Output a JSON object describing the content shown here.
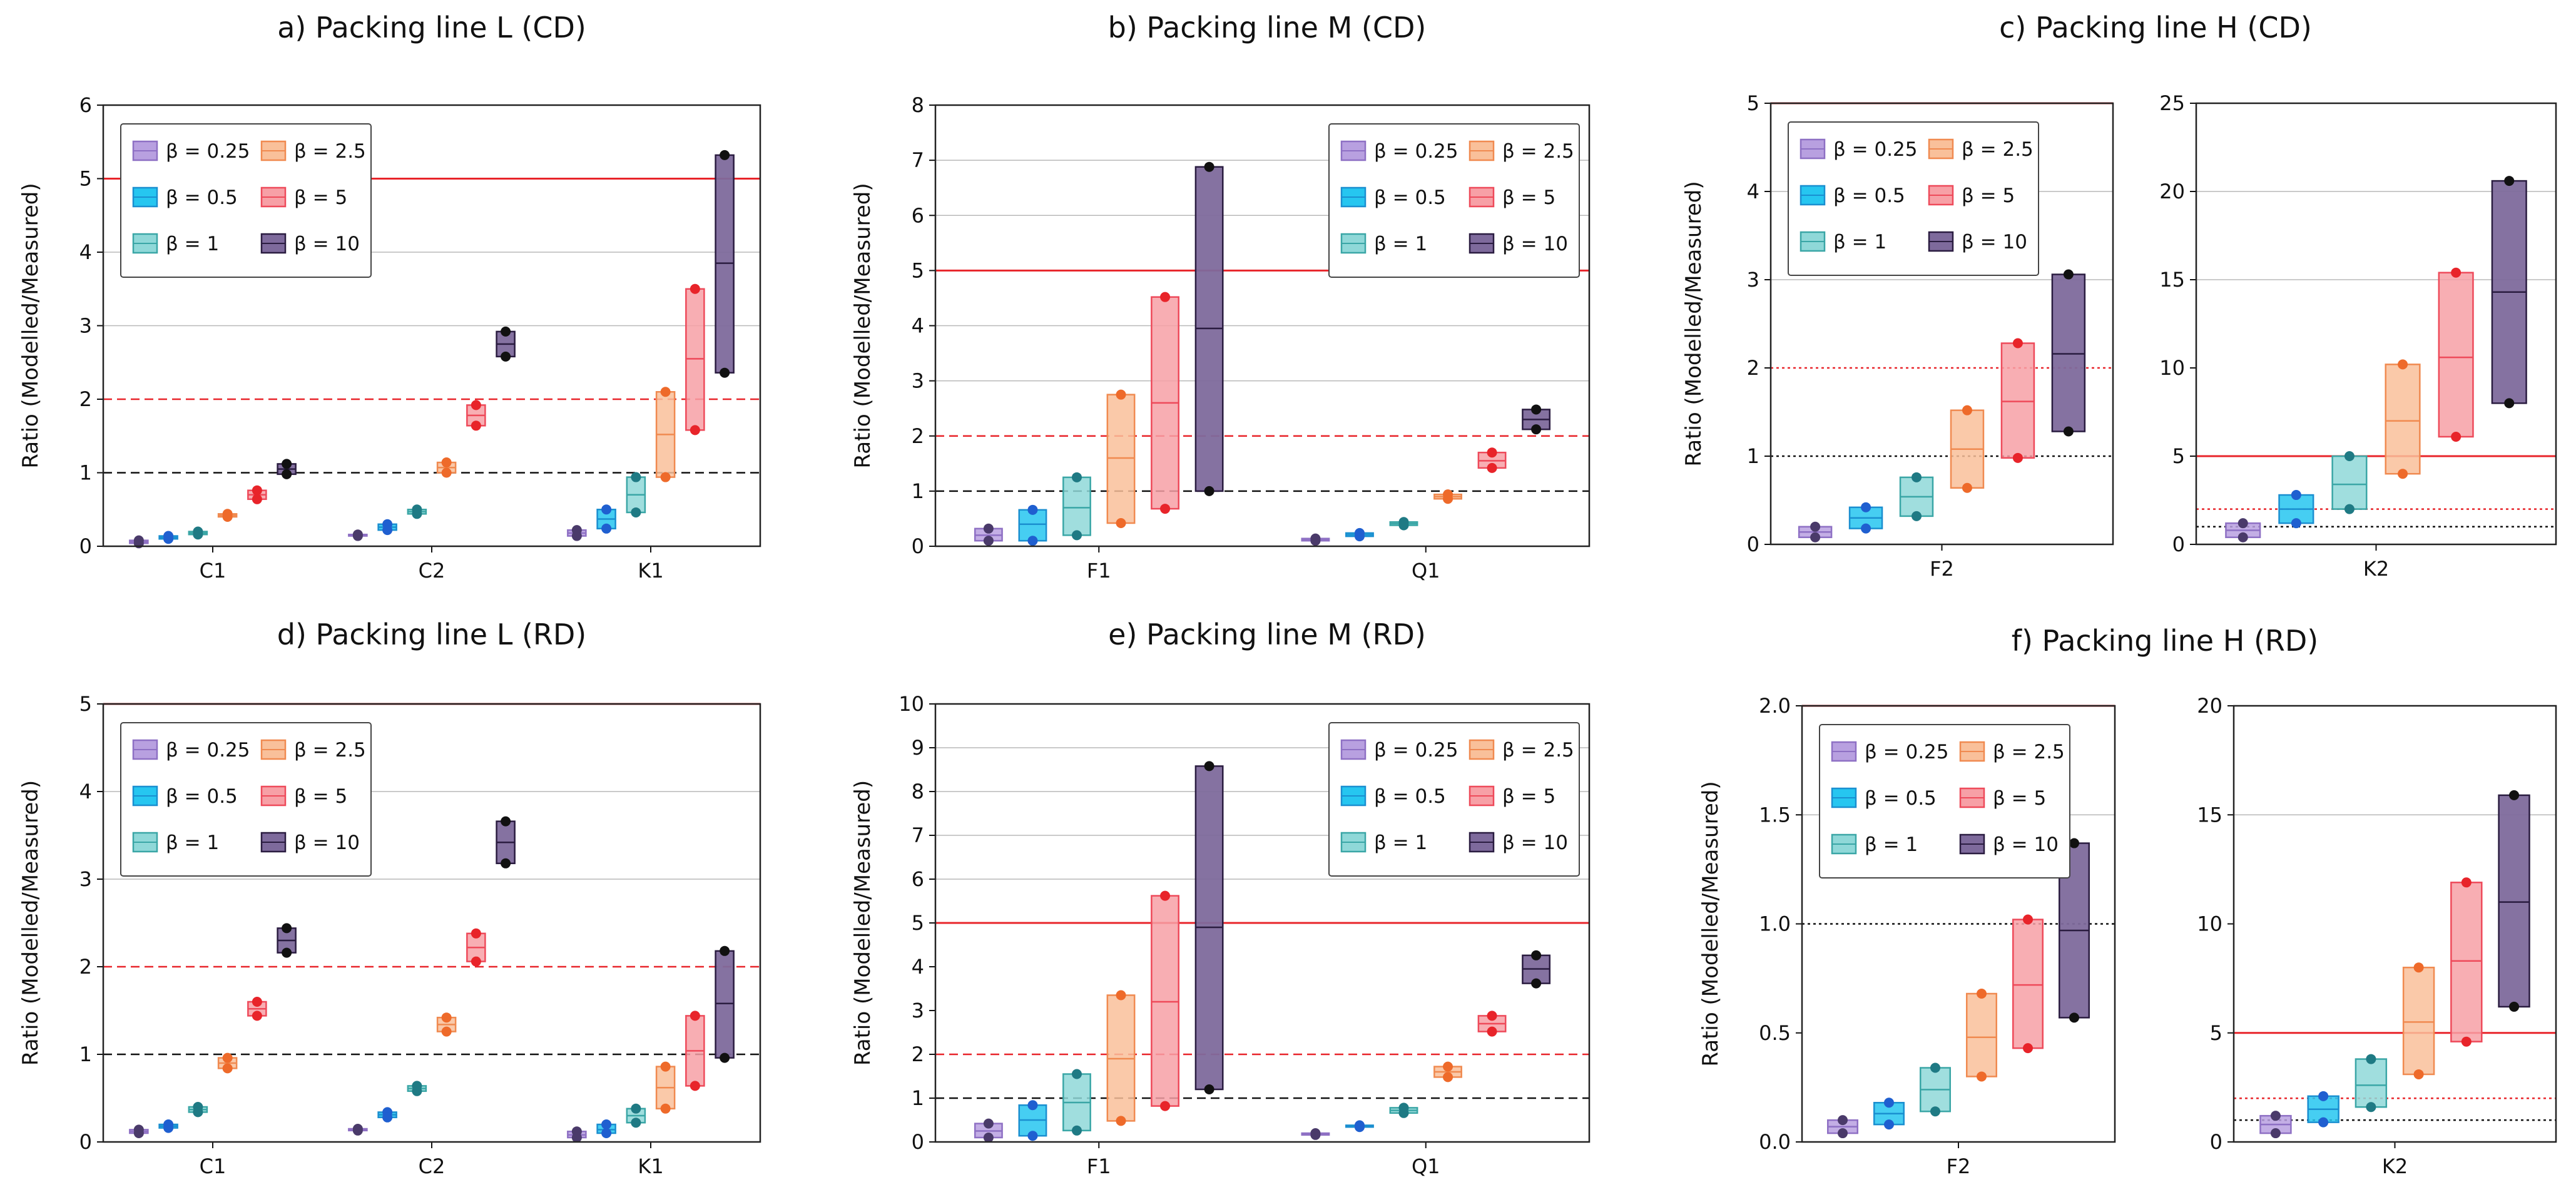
{
  "figure": {
    "legend_entries": [
      {
        "label": "β = 0.25",
        "color": "#b8a0e0",
        "edge": "#8e70c4"
      },
      {
        "label": "β = 0.5",
        "color": "#26c6f0",
        "edge": "#1a8fd0"
      },
      {
        "label": "β = 1",
        "color": "#8fd8d8",
        "edge": "#3aa6a6"
      },
      {
        "label": "β = 2.5",
        "color": "#f9c09a",
        "edge": "#f08a50"
      },
      {
        "label": "β = 5",
        "color": "#f7a0a6",
        "edge": "#ee4a5a"
      },
      {
        "label": "β = 10",
        "color": "#7e6a9c",
        "edge": "#2a1c40"
      }
    ],
    "point_colors": [
      "#4a3a6a",
      "#1f5fd0",
      "#1f7a84",
      "#ee6a2a",
      "#e8242a",
      "#111111"
    ],
    "reference_line_colors": {
      "red": "#e8242a",
      "black": "#111111"
    }
  },
  "chart_data": [
    {
      "id": "a",
      "type": "box",
      "title": "a) Packing line L (CD)",
      "ylabel": "Ratio (Modelled/Measured)",
      "ylim": [
        0,
        6
      ],
      "yticks": [
        "0",
        "1",
        "2",
        "3",
        "4",
        "5",
        "6"
      ],
      "grid_y": [
        3,
        4,
        6
      ],
      "reference_lines": [
        {
          "y": 5,
          "style": "solid-red"
        },
        {
          "y": 2,
          "style": "dashed-red"
        },
        {
          "y": 1,
          "style": "dashed-black"
        }
      ],
      "legend_position": "top-left",
      "categories": [
        "C1",
        "C2",
        "K1"
      ],
      "boxes": {
        "C1": [
          [
            0.04,
            0.06,
            0.08
          ],
          [
            0.1,
            0.12,
            0.14
          ],
          [
            0.16,
            0.18,
            0.2
          ],
          [
            0.4,
            0.42,
            0.44
          ],
          [
            0.64,
            0.7,
            0.76
          ],
          [
            0.98,
            1.05,
            1.12
          ]
        ],
        "C2": [
          [
            0.14,
            0.15,
            0.16
          ],
          [
            0.22,
            0.26,
            0.3
          ],
          [
            0.44,
            0.47,
            0.5
          ],
          [
            1.0,
            1.07,
            1.14
          ],
          [
            1.64,
            1.78,
            1.92
          ],
          [
            2.58,
            2.75,
            2.92
          ]
        ],
        "K1": [
          [
            0.14,
            0.18,
            0.22
          ],
          [
            0.24,
            0.37,
            0.5
          ],
          [
            0.46,
            0.7,
            0.94
          ],
          [
            0.94,
            1.52,
            2.1
          ],
          [
            1.58,
            2.55,
            3.5
          ],
          [
            2.36,
            3.85,
            5.32
          ]
        ]
      }
    },
    {
      "id": "b",
      "type": "box",
      "title": "b) Packing line M (CD)",
      "ylabel": "Ratio (Modelled/Measured)",
      "ylim": [
        0,
        8
      ],
      "yticks": [
        "0",
        "1",
        "2",
        "3",
        "4",
        "5",
        "6",
        "7",
        "8"
      ],
      "grid_y": [
        3,
        4,
        6,
        7,
        8
      ],
      "reference_lines": [
        {
          "y": 5,
          "style": "solid-red"
        },
        {
          "y": 2,
          "style": "dashed-red"
        },
        {
          "y": 1,
          "style": "dashed-black"
        }
      ],
      "legend_position": "top-right",
      "categories": [
        "F1",
        "Q1"
      ],
      "boxes": {
        "F1": [
          [
            0.1,
            0.2,
            0.32
          ],
          [
            0.1,
            0.4,
            0.66
          ],
          [
            0.2,
            0.7,
            1.25
          ],
          [
            0.42,
            1.6,
            2.75
          ],
          [
            0.68,
            2.6,
            4.52
          ],
          [
            1.0,
            3.95,
            6.88
          ]
        ],
        "Q1": [
          [
            0.1,
            0.12,
            0.14
          ],
          [
            0.18,
            0.21,
            0.24
          ],
          [
            0.38,
            0.41,
            0.44
          ],
          [
            0.86,
            0.9,
            0.94
          ],
          [
            1.42,
            1.55,
            1.7
          ],
          [
            2.12,
            2.3,
            2.48
          ]
        ]
      }
    },
    {
      "id": "c",
      "type": "box",
      "title": "c) Packing line H (CD)",
      "subplots": [
        {
          "ylabel": "Ratio (Modelled/Measured)",
          "ylim": [
            0,
            5
          ],
          "yticks": [
            "0",
            "1",
            "2",
            "3",
            "4",
            "5"
          ],
          "grid_y": [
            3,
            4
          ],
          "reference_lines": [
            {
              "y": 5,
              "style": "solid-red"
            },
            {
              "y": 2,
              "style": "dotted-red"
            },
            {
              "y": 1,
              "style": "dotted-black"
            }
          ],
          "legend_position": "top-left",
          "categories": [
            "F2"
          ],
          "boxes": {
            "F2": [
              [
                0.08,
                0.14,
                0.2
              ],
              [
                0.18,
                0.3,
                0.42
              ],
              [
                0.32,
                0.54,
                0.76
              ],
              [
                0.64,
                1.08,
                1.52
              ],
              [
                0.98,
                1.62,
                2.28
              ],
              [
                1.28,
                2.16,
                3.06
              ]
            ]
          }
        },
        {
          "ylim": [
            0,
            25
          ],
          "yticks": [
            "0",
            "5",
            "10",
            "15",
            "20",
            "25"
          ],
          "grid_y": [
            15,
            20,
            25
          ],
          "reference_lines": [
            {
              "y": 5,
              "style": "solid-red"
            },
            {
              "y": 2,
              "style": "dotted-red"
            },
            {
              "y": 1,
              "style": "dotted-black"
            }
          ],
          "categories": [
            "K2"
          ],
          "boxes": {
            "K2": [
              [
                0.4,
                0.8,
                1.2
              ],
              [
                1.2,
                2.0,
                2.8
              ],
              [
                2.0,
                3.4,
                5.0
              ],
              [
                4.0,
                7.0,
                10.2
              ],
              [
                6.1,
                10.6,
                15.4
              ],
              [
                8.0,
                14.3,
                20.6
              ]
            ]
          }
        }
      ]
    },
    {
      "id": "d",
      "type": "box",
      "title": "d) Packing line L (RD)",
      "ylabel": "Ratio (Modelled/Measured)",
      "ylim": [
        0,
        5
      ],
      "yticks": [
        "0",
        "1",
        "2",
        "3",
        "4",
        "5"
      ],
      "grid_y": [
        3,
        4
      ],
      "reference_lines": [
        {
          "y": 5,
          "style": "solid-red"
        },
        {
          "y": 2,
          "style": "dashed-red"
        },
        {
          "y": 1,
          "style": "dashed-black"
        }
      ],
      "legend_position": "top-left",
      "categories": [
        "C1",
        "C2",
        "K1"
      ],
      "boxes": {
        "C1": [
          [
            0.1,
            0.12,
            0.14
          ],
          [
            0.16,
            0.18,
            0.2
          ],
          [
            0.34,
            0.37,
            0.4
          ],
          [
            0.84,
            0.9,
            0.96
          ],
          [
            1.44,
            1.52,
            1.6
          ],
          [
            2.16,
            2.3,
            2.44
          ]
        ],
        "C2": [
          [
            0.13,
            0.14,
            0.15
          ],
          [
            0.28,
            0.31,
            0.34
          ],
          [
            0.58,
            0.61,
            0.64
          ],
          [
            1.26,
            1.34,
            1.42
          ],
          [
            2.06,
            2.22,
            2.38
          ],
          [
            3.18,
            3.42,
            3.66
          ]
        ],
        "K1": [
          [
            0.05,
            0.08,
            0.12
          ],
          [
            0.1,
            0.14,
            0.2
          ],
          [
            0.22,
            0.3,
            0.38
          ],
          [
            0.38,
            0.62,
            0.86
          ],
          [
            0.64,
            1.04,
            1.44
          ],
          [
            0.96,
            1.58,
            2.18
          ]
        ]
      }
    },
    {
      "id": "e",
      "type": "box",
      "title": "e) Packing line M (RD)",
      "ylabel": "Ratio (Modelled/Measured)",
      "ylim": [
        0,
        10
      ],
      "yticks": [
        "0",
        "1",
        "2",
        "3",
        "4",
        "5",
        "6",
        "7",
        "8",
        "9",
        "10"
      ],
      "grid_y": [
        6,
        7,
        8,
        9,
        10
      ],
      "reference_lines": [
        {
          "y": 5,
          "style": "solid-red"
        },
        {
          "y": 2,
          "style": "dashed-red"
        },
        {
          "y": 1,
          "style": "dashed-black"
        }
      ],
      "legend_position": "top-right",
      "categories": [
        "F1",
        "Q1"
      ],
      "boxes": {
        "F1": [
          [
            0.1,
            0.25,
            0.42
          ],
          [
            0.14,
            0.5,
            0.84
          ],
          [
            0.26,
            0.9,
            1.55
          ],
          [
            0.48,
            1.9,
            3.35
          ],
          [
            0.82,
            3.2,
            5.62
          ],
          [
            1.2,
            4.9,
            8.58
          ]
        ],
        "Q1": [
          [
            0.16,
            0.18,
            0.2
          ],
          [
            0.34,
            0.36,
            0.38
          ],
          [
            0.66,
            0.72,
            0.78
          ],
          [
            1.48,
            1.6,
            1.72
          ],
          [
            2.52,
            2.7,
            2.88
          ],
          [
            3.62,
            3.95,
            4.26
          ]
        ]
      }
    },
    {
      "id": "f",
      "type": "box",
      "title": "f) Packing line H (RD)",
      "subplots": [
        {
          "ylabel": "Ratio (Modelled/Measured)",
          "ylim": [
            0,
            2.0
          ],
          "yticks": [
            "0.0",
            "0.5",
            "1.0",
            "1.5",
            "2.0"
          ],
          "grid_y": [
            1.5
          ],
          "reference_lines": [
            {
              "y": 2.0,
              "style": "solid-red"
            },
            {
              "y": 1.0,
              "style": "dotted-black"
            }
          ],
          "legend_position": "top-left",
          "categories": [
            "F2"
          ],
          "boxes": {
            "F2": [
              [
                0.04,
                0.07,
                0.1
              ],
              [
                0.08,
                0.13,
                0.18
              ],
              [
                0.14,
                0.24,
                0.34
              ],
              [
                0.3,
                0.48,
                0.68
              ],
              [
                0.43,
                0.72,
                1.02
              ],
              [
                0.57,
                0.97,
                1.37
              ]
            ]
          }
        },
        {
          "ylim": [
            0,
            20
          ],
          "yticks": [
            "0",
            "5",
            "10",
            "15",
            "20"
          ],
          "grid_y": [
            15,
            20
          ],
          "reference_lines": [
            {
              "y": 5,
              "style": "solid-red"
            },
            {
              "y": 2,
              "style": "dotted-red"
            },
            {
              "y": 1,
              "style": "dotted-black"
            }
          ],
          "categories": [
            "K2"
          ],
          "boxes": {
            "K2": [
              [
                0.4,
                0.8,
                1.2
              ],
              [
                0.9,
                1.5,
                2.1
              ],
              [
                1.6,
                2.6,
                3.8
              ],
              [
                3.1,
                5.5,
                8.0
              ],
              [
                4.6,
                8.3,
                11.9
              ],
              [
                6.2,
                11.0,
                15.9
              ]
            ]
          }
        }
      ]
    }
  ]
}
